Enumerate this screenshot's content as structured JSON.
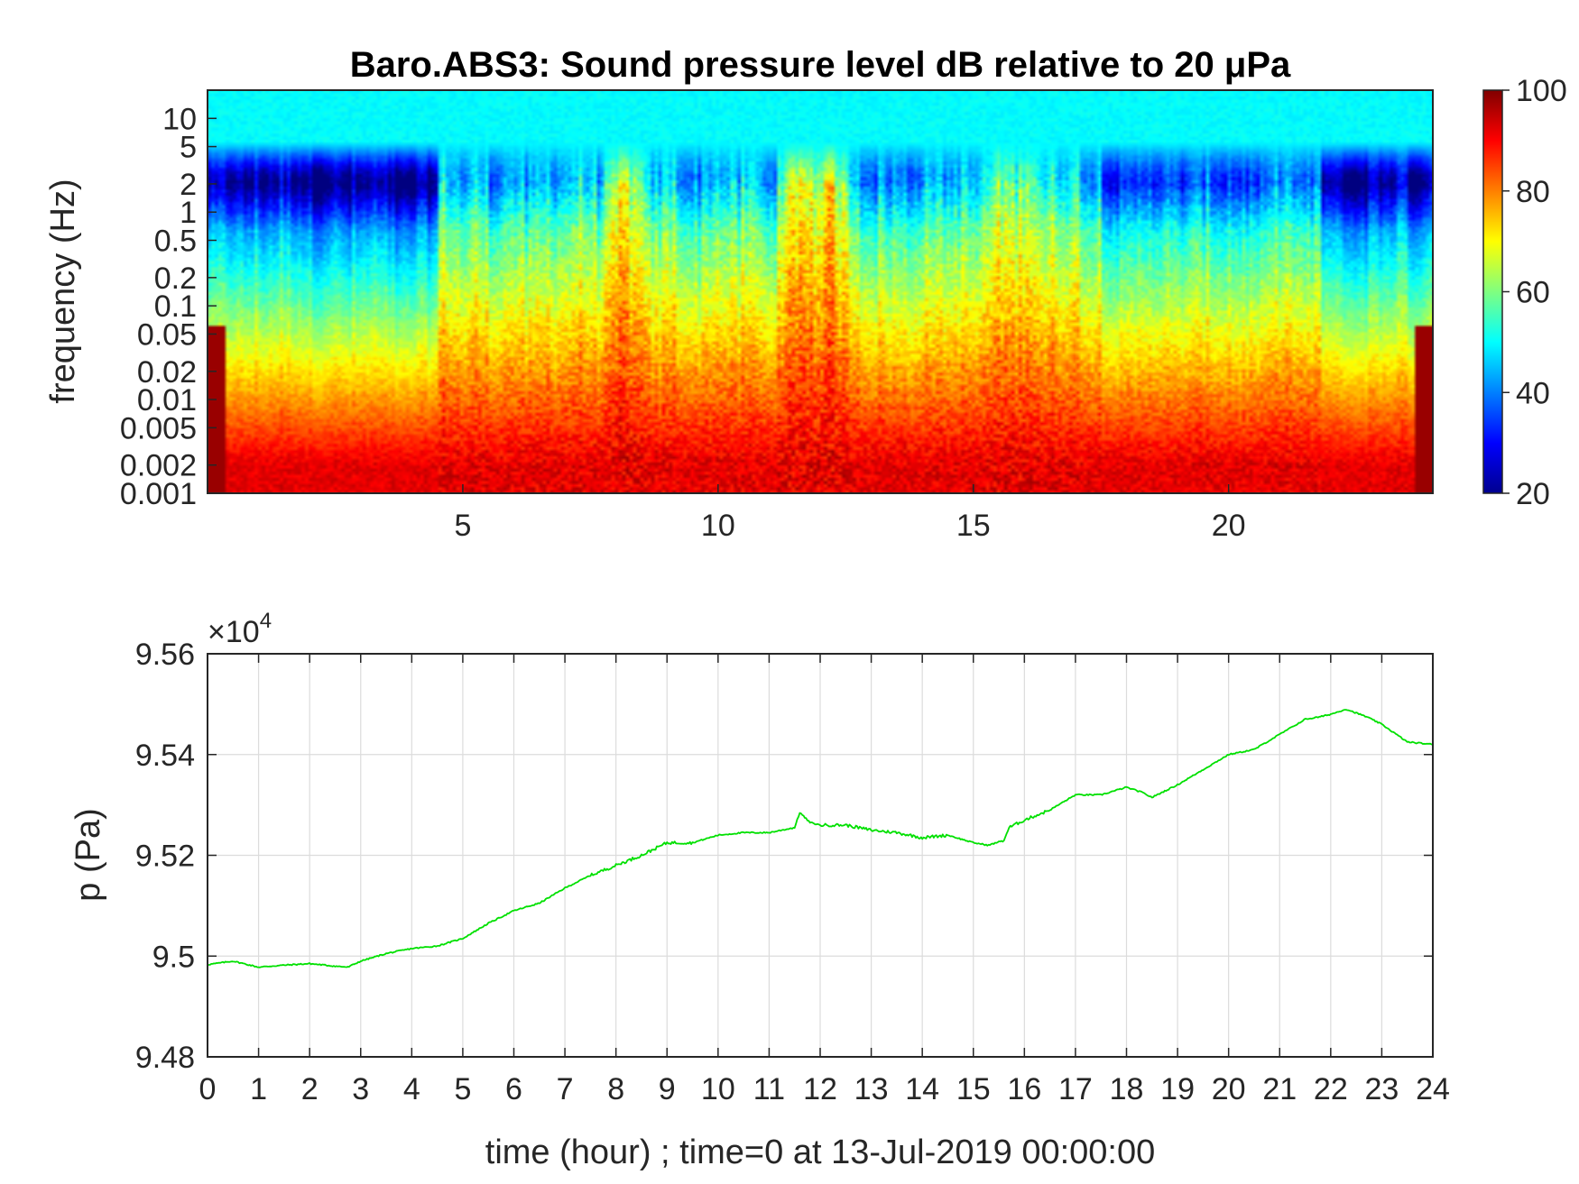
{
  "chart_data": [
    {
      "type": "heatmap",
      "title": "Baro.ABS3: Sound pressure level dB relative to 20 μPa",
      "ylabel": "frequency (Hz)",
      "xlabel": "",
      "x_range_hours": [
        0,
        24
      ],
      "x_ticks": [
        "5",
        "10",
        "15",
        "20"
      ],
      "y_scale": "log",
      "y_range_hz": [
        0.001,
        20
      ],
      "y_ticks": [
        "0.001",
        "0.002",
        "0.005",
        "0.01",
        "0.02",
        "0.05",
        "0.1",
        "0.2",
        "0.5",
        "1",
        "2",
        "5",
        "10"
      ],
      "colormap": "jet",
      "colorbar": {
        "range_db": [
          20,
          100
        ],
        "ticks": [
          "20",
          "40",
          "60",
          "80",
          "100"
        ]
      },
      "activity_peaks_hours": [
        8.2,
        11.7,
        12.3,
        15.9
      ]
    },
    {
      "type": "line",
      "ylabel": "p (Pa)",
      "xlabel": "time (hour) ; time=0 at 13-Jul-2019 00:00:00",
      "y_exponent_label": "×10",
      "y_exponent_power": "4",
      "x_ticks": [
        "0",
        "1",
        "2",
        "3",
        "4",
        "5",
        "6",
        "7",
        "8",
        "9",
        "10",
        "11",
        "12",
        "13",
        "14",
        "15",
        "16",
        "17",
        "18",
        "19",
        "20",
        "21",
        "22",
        "23",
        "24"
      ],
      "y_ticks": [
        "9.48",
        "9.5",
        "9.52",
        "9.54",
        "9.56"
      ],
      "xlim": [
        0,
        24
      ],
      "ylim": [
        9.48,
        9.56
      ],
      "grid": true,
      "series_color": "#00e000",
      "series": [
        {
          "x": [
            0,
            0.5,
            1,
            1.5,
            2,
            2.5,
            2.75,
            3,
            3.5,
            4,
            4.5,
            5,
            5.5,
            6,
            6.5,
            7,
            7.5,
            8,
            8.5,
            9,
            9.5,
            10,
            10.5,
            11,
            11.5,
            11.6,
            11.8,
            12,
            12.5,
            13,
            13.5,
            14,
            14.5,
            15,
            15.3,
            15.6,
            15.7,
            16,
            16.5,
            17,
            17.5,
            18,
            18.3,
            18.5,
            19,
            19.5,
            20,
            20.5,
            21,
            21.5,
            21.8,
            22,
            22.3,
            22.7,
            23,
            23.5,
            24
          ],
          "y": [
            9.4983,
            9.499,
            9.4978,
            9.4982,
            9.4985,
            9.498,
            9.4978,
            9.499,
            9.5005,
            9.5015,
            9.502,
            9.5035,
            9.5065,
            9.509,
            9.5105,
            9.5135,
            9.516,
            9.518,
            9.52,
            9.5225,
            9.5225,
            9.524,
            9.5245,
            9.5245,
            9.5255,
            9.5285,
            9.5265,
            9.526,
            9.526,
            9.525,
            9.5245,
            9.5235,
            9.524,
            9.5225,
            9.522,
            9.523,
            9.5255,
            9.527,
            9.529,
            9.532,
            9.532,
            9.5335,
            9.5325,
            9.5315,
            9.534,
            9.537,
            9.54,
            9.541,
            9.544,
            9.547,
            9.5475,
            9.548,
            9.549,
            9.5475,
            9.546,
            9.5425,
            9.542
          ]
        }
      ]
    }
  ]
}
